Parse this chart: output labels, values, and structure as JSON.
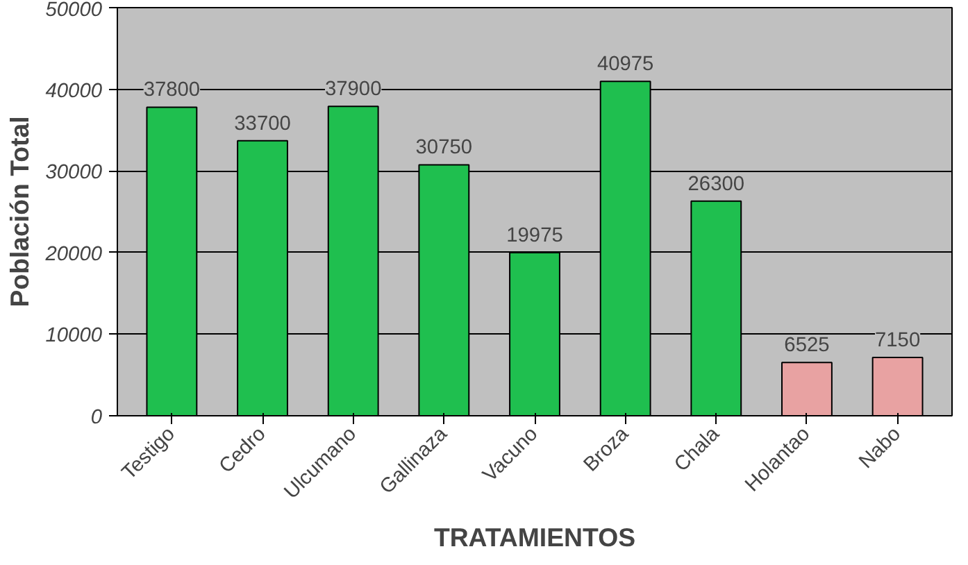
{
  "chart_data": {
    "type": "bar",
    "xlabel": "TRATAMIENTOS",
    "ylabel": "Población Total",
    "categories": [
      "Testigo",
      "Cedro",
      "Ulcumano",
      "Gallinaza",
      "Vacuno",
      "Broza",
      "Chala",
      "Holantao",
      "Nabo"
    ],
    "values": [
      37800,
      33700,
      37900,
      30750,
      19975,
      40975,
      26300,
      6525,
      7150
    ],
    "colors": [
      "#1fbf4f",
      "#1fbf4f",
      "#1fbf4f",
      "#1fbf4f",
      "#1fbf4f",
      "#1fbf4f",
      "#1fbf4f",
      "#e8a2a2",
      "#e8a2a2"
    ],
    "ylim": [
      0,
      50000
    ],
    "yticks": [
      0,
      10000,
      20000,
      30000,
      40000,
      50000
    ],
    "grid": "y",
    "data_labels": true
  }
}
